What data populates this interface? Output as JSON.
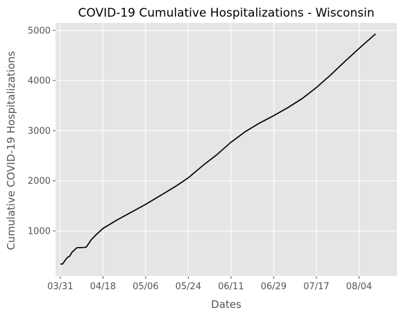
{
  "chart_data": {
    "type": "line",
    "title": "COVID-19 Cumulative Hospitalizations - Wisconsin",
    "xlabel": "Dates",
    "ylabel": "Cumulative COVID-19 Hospitalizations",
    "x_ticks": [
      "03/31",
      "04/18",
      "05/06",
      "05/24",
      "06/11",
      "06/29",
      "07/17",
      "08/04"
    ],
    "y_ticks": [
      1000,
      2000,
      3000,
      4000,
      5000
    ],
    "ylim": [
      100,
      5150
    ],
    "xlim": [
      "03/29",
      "08/20"
    ],
    "grid": true,
    "series": [
      {
        "line_color": "#000000",
        "points": [
          {
            "x": "03/31",
            "y": 340
          },
          {
            "x": "04/01",
            "y": 342
          },
          {
            "x": "04/02",
            "y": 410
          },
          {
            "x": "04/03",
            "y": 470
          },
          {
            "x": "04/04",
            "y": 500
          },
          {
            "x": "04/05",
            "y": 580
          },
          {
            "x": "04/06",
            "y": 620
          },
          {
            "x": "04/07",
            "y": 665
          },
          {
            "x": "04/08",
            "y": 668
          },
          {
            "x": "04/09",
            "y": 668
          },
          {
            "x": "04/10",
            "y": 670
          },
          {
            "x": "04/11",
            "y": 680
          },
          {
            "x": "04/12",
            "y": 750
          },
          {
            "x": "04/13",
            "y": 820
          },
          {
            "x": "04/15",
            "y": 920
          },
          {
            "x": "04/18",
            "y": 1050
          },
          {
            "x": "04/24",
            "y": 1220
          },
          {
            "x": "05/01",
            "y": 1400
          },
          {
            "x": "05/06",
            "y": 1530
          },
          {
            "x": "05/12",
            "y": 1700
          },
          {
            "x": "05/19",
            "y": 1900
          },
          {
            "x": "05/24",
            "y": 2060
          },
          {
            "x": "05/30",
            "y": 2300
          },
          {
            "x": "06/05",
            "y": 2520
          },
          {
            "x": "06/11",
            "y": 2770
          },
          {
            "x": "06/17",
            "y": 2980
          },
          {
            "x": "06/23",
            "y": 3150
          },
          {
            "x": "06/29",
            "y": 3300
          },
          {
            "x": "07/05",
            "y": 3460
          },
          {
            "x": "07/11",
            "y": 3640
          },
          {
            "x": "07/17",
            "y": 3860
          },
          {
            "x": "07/23",
            "y": 4110
          },
          {
            "x": "07/29",
            "y": 4380
          },
          {
            "x": "08/04",
            "y": 4640
          },
          {
            "x": "08/10",
            "y": 4890
          },
          {
            "x": "08/11",
            "y": 4930
          }
        ]
      }
    ],
    "colors": {
      "plot_background": "#e5e5e5",
      "grid": "#ffffff",
      "line": "#000000",
      "text": "#555555"
    }
  }
}
